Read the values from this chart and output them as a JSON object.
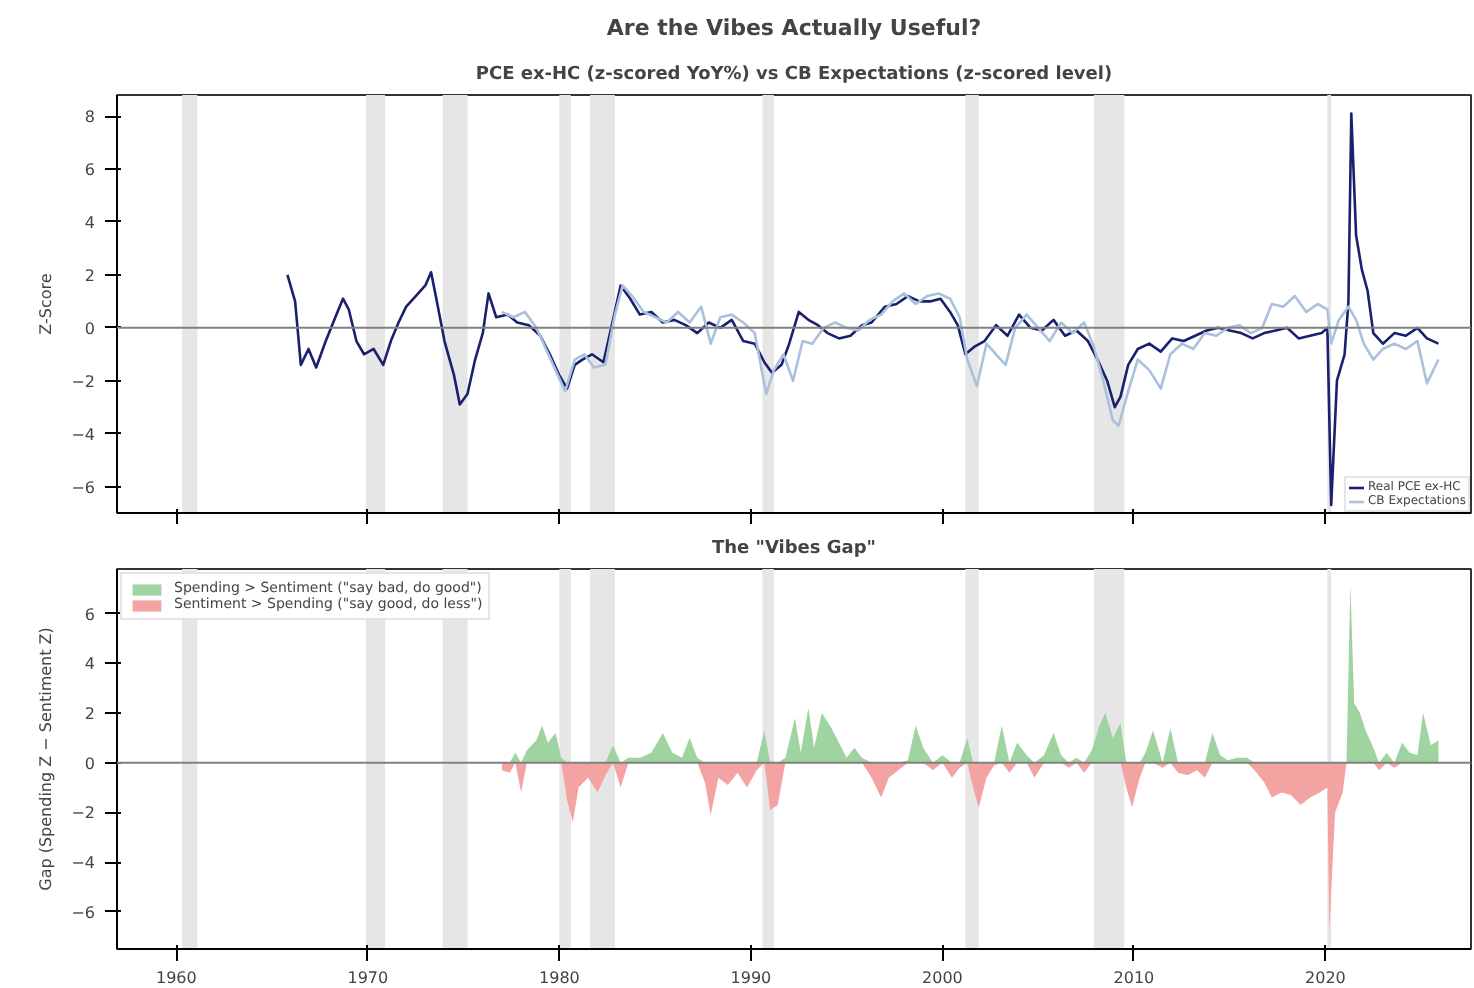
{
  "chart_data": [
    {
      "type": "line",
      "title": "Are the Vibes Actually Useful?",
      "subtitle": "PCE ex-HC (z-scored YoY%) vs CB Expectations (z-scored level)",
      "ylabel": "Z-Score",
      "xlim": [
        1956.9,
        2027.6
      ],
      "ylim": [
        -7.0,
        8.8
      ],
      "xticks": [
        1960,
        1970,
        1980,
        1990,
        2000,
        2010,
        2020
      ],
      "yticks": [
        -6,
        -4,
        -2,
        0,
        2,
        4,
        6,
        8
      ],
      "tick_labels": "y",
      "grid": false,
      "legend": "bottom right",
      "ref_lines": [
        {
          "axis": "y",
          "value": 0,
          "color": "#808080"
        }
      ],
      "bands": [
        {
          "axis": "x",
          "from": 1960.3,
          "to": 1961.1,
          "color": "#e6e6e6"
        },
        {
          "axis": "x",
          "from": 1969.9,
          "to": 1970.9,
          "color": "#e6e6e6"
        },
        {
          "axis": "x",
          "from": 1973.9,
          "to": 1975.2,
          "color": "#e6e6e6"
        },
        {
          "axis": "x",
          "from": 1980.0,
          "to": 1980.6,
          "color": "#e6e6e6"
        },
        {
          "axis": "x",
          "from": 1981.6,
          "to": 1982.9,
          "color": "#e6e6e6"
        },
        {
          "axis": "x",
          "from": 1990.6,
          "to": 1991.2,
          "color": "#e6e6e6"
        },
        {
          "axis": "x",
          "from": 2001.2,
          "to": 2001.9,
          "color": "#e6e6e6"
        },
        {
          "axis": "x",
          "from": 2007.9,
          "to": 2009.5,
          "color": "#e6e6e6"
        },
        {
          "axis": "x",
          "from": 2020.1,
          "to": 2020.3,
          "color": "#e6e6e6"
        }
      ],
      "series": [
        {
          "name": "Real PCE ex-HC",
          "color": "#1a1f6e",
          "x": [
            1965.8,
            1966.2,
            1966.5,
            1966.9,
            1967.3,
            1967.8,
            1968.3,
            1968.7,
            1969.0,
            1969.4,
            1969.8,
            1970.3,
            1970.8,
            1971.2,
            1971.6,
            1972.0,
            1972.5,
            1973.0,
            1973.3,
            1973.6,
            1974.0,
            1974.5,
            1974.8,
            1975.2,
            1975.6,
            1976.0,
            1976.3,
            1976.7,
            1977.3,
            1977.8,
            1978.4,
            1979.0,
            1979.5,
            1980.0,
            1980.4,
            1980.8,
            1981.2,
            1981.7,
            1982.3,
            1982.8,
            1983.2,
            1983.7,
            1984.2,
            1984.8,
            1985.4,
            1986.0,
            1986.6,
            1987.2,
            1987.8,
            1988.4,
            1989.0,
            1989.6,
            1990.2,
            1990.7,
            1991.1,
            1991.6,
            1992.0,
            1992.5,
            1993.0,
            1993.5,
            1994.0,
            1994.6,
            1995.2,
            1995.8,
            1996.3,
            1997.0,
            1997.6,
            1998.2,
            1998.8,
            1999.4,
            1999.9,
            2000.4,
            2000.8,
            2001.2,
            2001.7,
            2002.2,
            2002.8,
            2003.4,
            2004.0,
            2004.6,
            2005.2,
            2005.8,
            2006.4,
            2007.0,
            2007.6,
            2008.1,
            2008.6,
            2009.0,
            2009.3,
            2009.7,
            2010.2,
            2010.8,
            2011.4,
            2012.0,
            2012.6,
            2013.2,
            2013.8,
            2014.4,
            2015.0,
            2015.6,
            2016.2,
            2016.8,
            2017.4,
            2018.0,
            2018.6,
            2019.2,
            2019.8,
            2020.1,
            2020.3,
            2020.6,
            2021.0,
            2021.2,
            2021.35,
            2021.6,
            2021.9,
            2022.2,
            2022.5,
            2023.0,
            2023.6,
            2024.2,
            2024.8,
            2025.3,
            2025.9
          ],
          "values": [
            2.0,
            1.0,
            -1.4,
            -0.8,
            -1.5,
            -0.5,
            0.4,
            1.1,
            0.7,
            -0.5,
            -1.0,
            -0.8,
            -1.4,
            -0.5,
            0.2,
            0.8,
            1.2,
            1.6,
            2.1,
            1.0,
            -0.5,
            -1.8,
            -2.9,
            -2.5,
            -1.2,
            -0.2,
            1.3,
            0.4,
            0.5,
            0.2,
            0.1,
            -0.3,
            -1.0,
            -1.8,
            -2.3,
            -1.4,
            -1.2,
            -1.0,
            -1.3,
            0.3,
            1.6,
            1.1,
            0.5,
            0.6,
            0.2,
            0.3,
            0.1,
            -0.2,
            0.2,
            0.0,
            0.3,
            -0.5,
            -0.6,
            -1.3,
            -1.7,
            -1.4,
            -0.6,
            0.6,
            0.3,
            0.1,
            -0.2,
            -0.4,
            -0.3,
            0.1,
            0.2,
            0.8,
            0.9,
            1.2,
            1.0,
            1.0,
            1.1,
            0.6,
            0.1,
            -1.0,
            -0.7,
            -0.5,
            0.1,
            -0.3,
            0.5,
            0.0,
            -0.1,
            0.3,
            -0.3,
            -0.1,
            -0.5,
            -1.2,
            -2.0,
            -3.0,
            -2.6,
            -1.4,
            -0.8,
            -0.6,
            -0.9,
            -0.4,
            -0.5,
            -0.3,
            -0.1,
            0.0,
            -0.1,
            -0.2,
            -0.4,
            -0.2,
            -0.1,
            0.0,
            -0.4,
            -0.3,
            -0.2,
            0.0,
            -6.7,
            -2.0,
            -1.0,
            1.0,
            8.1,
            3.5,
            2.2,
            1.4,
            -0.2,
            -0.6,
            -0.2,
            -0.3,
            0.0,
            -0.4,
            -0.6
          ]
        },
        {
          "name": "CB Expectations",
          "color": "#a9c1dc",
          "x": [
            1977.0,
            1977.6,
            1978.2,
            1978.8,
            1979.3,
            1979.8,
            1980.3,
            1980.8,
            1981.3,
            1981.8,
            1982.4,
            1982.9,
            1983.3,
            1983.8,
            1984.4,
            1985.0,
            1985.6,
            1986.2,
            1986.8,
            1987.4,
            1987.9,
            1988.4,
            1989.0,
            1989.6,
            1990.2,
            1990.8,
            1991.2,
            1991.7,
            1992.2,
            1992.7,
            1993.2,
            1993.8,
            1994.4,
            1995.0,
            1995.6,
            1996.2,
            1996.8,
            1997.4,
            1998.0,
            1998.6,
            1999.2,
            1999.8,
            2000.4,
            2000.9,
            2001.3,
            2001.8,
            2002.3,
            2002.8,
            2003.3,
            2003.8,
            2004.4,
            2005.0,
            2005.6,
            2006.2,
            2006.8,
            2007.4,
            2007.9,
            2008.4,
            2008.9,
            2009.2,
            2009.7,
            2010.2,
            2010.8,
            2011.4,
            2011.9,
            2012.5,
            2013.1,
            2013.7,
            2014.3,
            2014.9,
            2015.5,
            2016.1,
            2016.7,
            2017.2,
            2017.8,
            2018.4,
            2019.0,
            2019.6,
            2020.1,
            2020.3,
            2020.7,
            2021.2,
            2021.6,
            2022.0,
            2022.5,
            2023.0,
            2023.6,
            2024.2,
            2024.8,
            2025.3,
            2025.9
          ],
          "values": [
            0.6,
            0.4,
            0.6,
            0.0,
            -0.8,
            -1.6,
            -2.4,
            -1.2,
            -1.0,
            -1.5,
            -1.4,
            0.5,
            1.6,
            1.2,
            0.6,
            0.4,
            0.2,
            0.6,
            0.2,
            0.8,
            -0.6,
            0.4,
            0.5,
            0.2,
            -0.2,
            -2.5,
            -1.6,
            -1.0,
            -2.0,
            -0.5,
            -0.6,
            0.0,
            0.2,
            0.0,
            -0.1,
            0.3,
            0.5,
            1.0,
            1.3,
            0.9,
            1.2,
            1.3,
            1.1,
            0.4,
            -1.2,
            -2.2,
            -0.6,
            -1.0,
            -1.4,
            0.0,
            0.5,
            0.0,
            -0.5,
            0.2,
            -0.2,
            0.2,
            -0.7,
            -2.0,
            -3.5,
            -3.7,
            -2.4,
            -1.2,
            -1.6,
            -2.3,
            -1.0,
            -0.6,
            -0.8,
            -0.2,
            -0.3,
            0.0,
            0.1,
            -0.2,
            0.0,
            0.9,
            0.8,
            1.2,
            0.6,
            0.9,
            0.7,
            -0.6,
            0.3,
            0.8,
            0.3,
            -0.6,
            -1.2,
            -0.8,
            -0.6,
            -0.8,
            -0.5,
            -2.1,
            -1.2
          ]
        }
      ]
    },
    {
      "type": "area",
      "title": "The \"Vibes Gap\"",
      "ylabel": "Gap (Spending Z − Sentiment Z)",
      "xlim": [
        1956.9,
        2027.6
      ],
      "ylim": [
        -7.5,
        7.8
      ],
      "xticks": [
        1960,
        1970,
        1980,
        1990,
        2000,
        2010,
        2020
      ],
      "yticks": [
        -6,
        -4,
        -2,
        0,
        2,
        4,
        6
      ],
      "grid": false,
      "legend": "top left",
      "ref_lines": [
        {
          "axis": "y",
          "value": 0,
          "color": "#808080"
        }
      ],
      "bands": [
        {
          "axis": "x",
          "from": 1960.3,
          "to": 1961.1,
          "color": "#e6e6e6"
        },
        {
          "axis": "x",
          "from": 1969.9,
          "to": 1970.9,
          "color": "#e6e6e6"
        },
        {
          "axis": "x",
          "from": 1973.9,
          "to": 1975.2,
          "color": "#e6e6e6"
        },
        {
          "axis": "x",
          "from": 1980.0,
          "to": 1980.6,
          "color": "#e6e6e6"
        },
        {
          "axis": "x",
          "from": 1981.6,
          "to": 1982.9,
          "color": "#e6e6e6"
        },
        {
          "axis": "x",
          "from": 1990.6,
          "to": 1991.2,
          "color": "#e6e6e6"
        },
        {
          "axis": "x",
          "from": 2001.2,
          "to": 2001.9,
          "color": "#e6e6e6"
        },
        {
          "axis": "x",
          "from": 2007.9,
          "to": 2009.5,
          "color": "#e6e6e6"
        },
        {
          "axis": "x",
          "from": 2020.1,
          "to": 2020.3,
          "color": "#e6e6e6"
        }
      ],
      "series": [
        {
          "name": "Spending > Sentiment (\"say bad, do good\")",
          "color": "#9fd39f",
          "x": [
            1977.0,
            1977.4,
            1977.7,
            1978.0,
            1978.3,
            1978.8,
            1979.1,
            1979.4,
            1979.8,
            1980.1,
            1980.4,
            1980.7,
            1981.0,
            1981.5,
            1982.0,
            1982.4,
            1982.8,
            1983.2,
            1983.6,
            1984.2,
            1984.8,
            1985.4,
            1985.9,
            1986.4,
            1986.8,
            1987.2,
            1987.6,
            1987.9,
            1988.3,
            1988.8,
            1989.3,
            1989.8,
            1990.3,
            1990.7,
            1991.0,
            1991.4,
            1991.8,
            1992.3,
            1992.6,
            1993.0,
            1993.3,
            1993.7,
            1994.2,
            1994.6,
            1995.0,
            1995.4,
            1995.8,
            1996.3,
            1996.8,
            1997.2,
            1997.7,
            1998.2,
            1998.6,
            1999.0,
            1999.5,
            2000.0,
            2000.5,
            2000.9,
            2001.3,
            2001.6,
            2001.9,
            2002.3,
            2002.7,
            2003.1,
            2003.5,
            2003.9,
            2004.4,
            2004.8,
            2005.3,
            2005.8,
            2006.2,
            2006.6,
            2007.0,
            2007.4,
            2007.8,
            2008.2,
            2008.5,
            2008.9,
            2009.3,
            2009.6,
            2009.9,
            2010.3,
            2010.6,
            2011.0,
            2011.5,
            2011.9,
            2012.3,
            2012.8,
            2013.3,
            2013.7,
            2014.1,
            2014.5,
            2014.9,
            2015.4,
            2015.9,
            2016.3,
            2016.8,
            2017.2,
            2017.7,
            2018.2,
            2018.7,
            2019.2,
            2019.7,
            2020.1,
            2020.2,
            2020.5,
            2020.9,
            2021.1,
            2021.3,
            2021.5,
            2021.8,
            2022.1,
            2022.5,
            2022.8,
            2023.2,
            2023.6,
            2024.0,
            2024.4,
            2024.8,
            2025.1,
            2025.5,
            2025.9
          ],
          "values": [
            0,
            0,
            0.4,
            0,
            0.5,
            0.9,
            1.5,
            0.8,
            1.2,
            0.2,
            0,
            0,
            0,
            0,
            0,
            0,
            0.7,
            0,
            0.2,
            0.2,
            0.4,
            1.2,
            0.4,
            0.2,
            1.0,
            0.2,
            0,
            0,
            0,
            0,
            0,
            0,
            0,
            1.3,
            0,
            0,
            0.2,
            1.8,
            0.4,
            2.2,
            0.6,
            2.0,
            1.4,
            0.8,
            0.2,
            0.6,
            0.2,
            0,
            0,
            0,
            0,
            0.1,
            1.5,
            0.6,
            0,
            0.3,
            0,
            0,
            1.0,
            0,
            0,
            0,
            0,
            1.5,
            0,
            0.8,
            0.3,
            0,
            0.3,
            1.2,
            0.3,
            0,
            0.2,
            0,
            0.5,
            1.5,
            2.0,
            1.0,
            1.6,
            0,
            0,
            0,
            0.4,
            1.3,
            0,
            1.4,
            0,
            0,
            0,
            0,
            1.2,
            0.3,
            0.1,
            0.2,
            0.2,
            0,
            0,
            0,
            0,
            0,
            0,
            0,
            0,
            0,
            0,
            0,
            0,
            0,
            7.2,
            2.4,
            2.0,
            1.3,
            0.6,
            0,
            0.4,
            0,
            0.8,
            0.4,
            0.3,
            2.0,
            0.7,
            0.9
          ]
        },
        {
          "name": "Sentiment > Spending (\"say good, do less\")",
          "color": "#f4a3a3",
          "x": [
            1977.0,
            1977.4,
            1977.7,
            1978.0,
            1978.3,
            1978.8,
            1979.1,
            1979.4,
            1979.8,
            1980.1,
            1980.4,
            1980.7,
            1981.0,
            1981.5,
            1982.0,
            1982.4,
            1982.8,
            1983.2,
            1983.6,
            1984.2,
            1984.8,
            1985.4,
            1985.9,
            1986.4,
            1986.8,
            1987.2,
            1987.6,
            1987.9,
            1988.3,
            1988.8,
            1989.3,
            1989.8,
            1990.3,
            1990.7,
            1991.0,
            1991.4,
            1991.8,
            1992.3,
            1992.6,
            1993.0,
            1993.3,
            1993.7,
            1994.2,
            1994.6,
            1995.0,
            1995.4,
            1995.8,
            1996.3,
            1996.8,
            1997.2,
            1997.7,
            1998.2,
            1998.6,
            1999.0,
            1999.5,
            2000.0,
            2000.5,
            2000.9,
            2001.3,
            2001.6,
            2001.9,
            2002.3,
            2002.7,
            2003.1,
            2003.5,
            2003.9,
            2004.4,
            2004.8,
            2005.3,
            2005.8,
            2006.2,
            2006.6,
            2007.0,
            2007.4,
            2007.8,
            2008.2,
            2008.5,
            2008.9,
            2009.3,
            2009.6,
            2009.9,
            2010.3,
            2010.6,
            2011.0,
            2011.5,
            2011.9,
            2012.3,
            2012.8,
            2013.3,
            2013.7,
            2014.1,
            2014.5,
            2014.9,
            2015.4,
            2015.9,
            2016.3,
            2016.8,
            2017.2,
            2017.7,
            2018.2,
            2018.7,
            2019.2,
            2019.7,
            2020.1,
            2020.2,
            2020.5,
            2020.9,
            2021.1,
            2021.3,
            2021.5,
            2021.8,
            2022.1,
            2022.5,
            2022.8,
            2023.2,
            2023.6,
            2024.0,
            2024.4,
            2024.8,
            2025.1,
            2025.5,
            2025.9
          ],
          "values": [
            -0.3,
            -0.4,
            0,
            -1.2,
            0,
            0,
            0,
            0,
            0,
            0,
            -1.5,
            -2.4,
            -1.0,
            -0.6,
            -1.2,
            -0.5,
            0,
            -1.0,
            0,
            0,
            0,
            0,
            0,
            0,
            0,
            0,
            -0.8,
            -2.1,
            -0.6,
            -0.9,
            -0.4,
            -1.0,
            -0.3,
            0,
            -1.9,
            -1.7,
            0,
            0,
            0,
            0,
            0,
            0,
            0,
            0,
            0,
            0,
            0,
            -0.6,
            -1.4,
            -0.6,
            -0.3,
            0,
            0,
            0,
            -0.3,
            0,
            -0.6,
            -0.2,
            0,
            -1.0,
            -1.8,
            -0.6,
            -0.1,
            0,
            -0.4,
            0,
            0,
            -0.6,
            0,
            0,
            0,
            -0.2,
            0,
            -0.4,
            0,
            0,
            0,
            0,
            0,
            -1.0,
            -1.8,
            -0.6,
            0,
            0,
            -0.2,
            0,
            -0.4,
            -0.5,
            -0.3,
            -0.6,
            0,
            0,
            0,
            0,
            0,
            -0.3,
            -0.8,
            -1.4,
            -1.2,
            -1.3,
            -1.7,
            -1.4,
            -1.2,
            -1.0,
            -6.8,
            -2.0,
            -1.2,
            0,
            0,
            0,
            0,
            0,
            0,
            -0.3,
            0,
            -0.2,
            0,
            0,
            0,
            0,
            0,
            0
          ]
        }
      ]
    }
  ]
}
